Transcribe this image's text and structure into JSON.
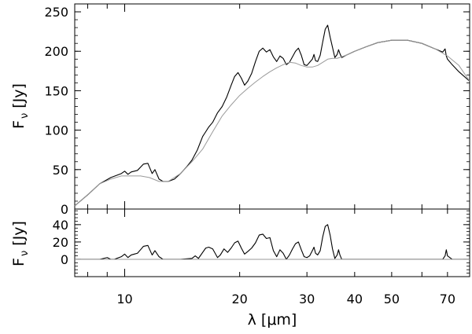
{
  "chart_data": [
    {
      "type": "line",
      "panel": "top",
      "xscale": "log",
      "xlim": [
        7.4,
        80
      ],
      "ylim": [
        0,
        260
      ],
      "yticks": [
        0,
        50,
        100,
        150,
        200,
        250
      ],
      "ylabel": {
        "main": "F",
        "sub": "ν",
        "unit": "[Jy]"
      },
      "series": [
        {
          "color": "#000000",
          "x": [
            7.4,
            8,
            8.6,
            9.2,
            9.8,
            10.0,
            10.2,
            10.4,
            10.6,
            10.8,
            11.0,
            11.2,
            11.5,
            11.8,
            12.0,
            12.3,
            12.6,
            13.0,
            13.5,
            14.0,
            14.5,
            15.0,
            15.5,
            16.0,
            16.3,
            16.6,
            17.0,
            17.5,
            18.0,
            18.5,
            19.0,
            19.4,
            19.8,
            20.2,
            20.6,
            21.0,
            21.5,
            22.0,
            22.5,
            23.0,
            23.5,
            24.0,
            24.5,
            25.0,
            25.5,
            26.0,
            26.5,
            27.0,
            27.5,
            28.0,
            28.5,
            29.0,
            29.5,
            30.0,
            30.5,
            31.0,
            31.3,
            31.6,
            32.0,
            32.5,
            33.0,
            33.5,
            34.0,
            34.5,
            35.0,
            35.5,
            36.0,
            36.3,
            36.6,
            37.0,
            38.0,
            40.0,
            43.0,
            46.0,
            50.0,
            55.0,
            60.0,
            65.0,
            68.0,
            69.0,
            69.5,
            70.0,
            72.0,
            75.0,
            80.0
          ],
          "y": [
            4,
            18,
            32,
            40,
            45,
            48,
            44,
            47,
            48,
            49,
            53,
            57,
            58,
            45,
            50,
            38,
            35,
            35,
            38,
            45,
            53,
            62,
            75,
            92,
            98,
            104,
            110,
            122,
            130,
            142,
            157,
            168,
            173,
            166,
            157,
            162,
            172,
            187,
            200,
            204,
            199,
            202,
            193,
            187,
            194,
            191,
            183,
            186,
            193,
            200,
            204,
            195,
            183,
            182,
            186,
            190,
            196,
            188,
            187,
            195,
            212,
            228,
            233,
            218,
            205,
            192,
            196,
            202,
            197,
            192,
            195,
            200,
            206,
            211,
            214,
            214,
            210,
            203,
            199,
            203,
            194,
            190,
            183,
            174,
            162
          ]
        },
        {
          "color": "#9a9a9a",
          "x": [
            7.4,
            8,
            8.6,
            9.2,
            9.8,
            10.4,
            11.0,
            11.6,
            12.3,
            13.0,
            14.0,
            15.0,
            16.0,
            17.0,
            18.0,
            19.0,
            20.0,
            21.0,
            22.0,
            23.0,
            24.0,
            25.0,
            26.0,
            27.0,
            28.0,
            29.0,
            30.0,
            31.0,
            32.0,
            33.0,
            34.0,
            35.0,
            36.0,
            38.0,
            40.0,
            43.0,
            46.0,
            50.0,
            55.0,
            60.0,
            65.0,
            70.0,
            75.0,
            80.0
          ],
          "y": [
            4,
            18,
            32,
            38,
            42,
            42,
            42,
            40,
            35,
            35,
            45,
            60,
            76,
            98,
            118,
            132,
            144,
            153,
            161,
            168,
            174,
            179,
            183,
            186,
            185,
            182,
            180,
            180,
            182,
            186,
            190,
            191,
            191,
            195,
            200,
            206,
            211,
            214,
            214,
            210,
            203,
            194,
            182,
            162
          ]
        }
      ]
    },
    {
      "type": "line",
      "panel": "bottom",
      "xscale": "log",
      "xlim": [
        7.4,
        80
      ],
      "ylim": [
        -20,
        58
      ],
      "yticks": [
        0,
        20,
        40
      ],
      "xticks": [
        10,
        20,
        30,
        40,
        50,
        70
      ],
      "xlabel": {
        "symbol": "λ",
        "unit_open": "[",
        "unit_mu": "μ",
        "unit_rest": "m]"
      },
      "ylabel": {
        "main": "F",
        "sub": "ν",
        "unit": "[Jy]"
      },
      "series": [
        {
          "color": "#000000",
          "x": [
            7.4,
            8.6,
            9.0,
            9.2,
            9.4,
            9.8,
            10.0,
            10.2,
            10.4,
            10.6,
            10.8,
            11.0,
            11.2,
            11.5,
            11.8,
            12.0,
            12.3,
            12.6,
            14.0,
            15.0,
            15.3,
            15.6,
            16.0,
            16.3,
            16.6,
            17.0,
            17.5,
            17.8,
            18.2,
            18.6,
            19.0,
            19.4,
            19.8,
            20.2,
            20.6,
            21.0,
            21.5,
            22.0,
            22.5,
            23.0,
            23.5,
            24.0,
            24.5,
            25.0,
            25.5,
            26.0,
            26.5,
            27.0,
            27.5,
            28.0,
            28.5,
            29.0,
            29.5,
            30.0,
            30.5,
            31.0,
            31.3,
            31.6,
            32.0,
            32.5,
            33.0,
            33.5,
            34.0,
            34.5,
            35.0,
            35.5,
            36.0,
            36.3,
            36.6,
            37.0,
            38.0,
            60.0,
            68.0,
            69.0,
            69.5,
            70.0,
            72.0,
            80.0
          ],
          "y": [
            0,
            0,
            2,
            0,
            0,
            3,
            6,
            2,
            5,
            6,
            7,
            11,
            15,
            16,
            5,
            10,
            3,
            0,
            0,
            1,
            4,
            1,
            8,
            13,
            14,
            12,
            2,
            5,
            12,
            8,
            13,
            19,
            21,
            13,
            6,
            9,
            13,
            19,
            28,
            29,
            24,
            25,
            10,
            3,
            11,
            7,
            0,
            5,
            12,
            18,
            20,
            11,
            3,
            2,
            4,
            10,
            14,
            7,
            5,
            10,
            26,
            38,
            40,
            28,
            12,
            1,
            5,
            11,
            5,
            0,
            0,
            0,
            0,
            4,
            11,
            4,
            0,
            0
          ]
        },
        {
          "color": "#9a9a9a",
          "x": [
            7.4,
            80
          ],
          "y": [
            0,
            0
          ]
        }
      ]
    }
  ]
}
